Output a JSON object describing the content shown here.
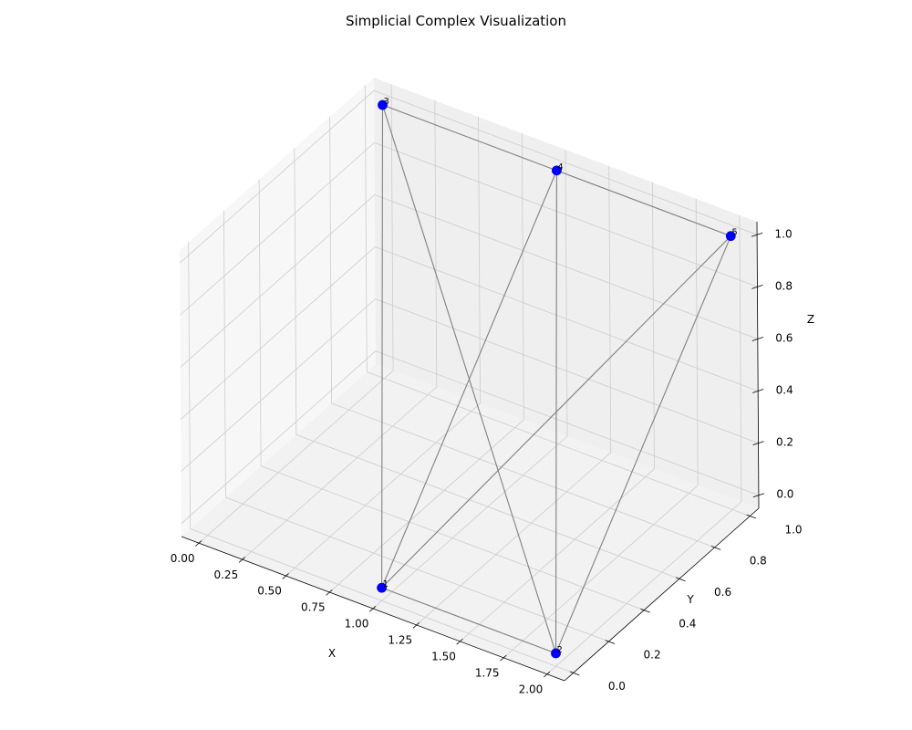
{
  "chart_data": {
    "type": "scatter",
    "title": "Simplicial Complex Visualization",
    "xlabel": "X",
    "ylabel": "Y",
    "zlabel": "Z",
    "grid": true,
    "xlim": [
      -0.1,
      2.1
    ],
    "ylim": [
      -0.05,
      1.05
    ],
    "zlim": [
      -0.05,
      1.05
    ],
    "x_ticks": [
      "0.00",
      "0.25",
      "0.50",
      "0.75",
      "1.00",
      "1.25",
      "1.50",
      "1.75",
      "2.00"
    ],
    "y_ticks": [
      "0.0",
      "0.2",
      "0.4",
      "0.6",
      "0.8",
      "1.0"
    ],
    "z_ticks": [
      "0.0",
      "0.2",
      "0.4",
      "0.6",
      "0.8",
      "1.0"
    ],
    "point_color": "#0000ff",
    "edge_color": "#808080",
    "points": [
      {
        "label": "1",
        "x": 1,
        "y": 0,
        "z": 0
      },
      {
        "label": "2",
        "x": 2,
        "y": 0,
        "z": 0
      },
      {
        "label": "3",
        "x": 0,
        "y": 1,
        "z": 1
      },
      {
        "label": "4",
        "x": 1,
        "y": 1,
        "z": 1
      },
      {
        "label": "5",
        "x": 2,
        "y": 1,
        "z": 1
      }
    ],
    "edges": [
      [
        "1",
        "2"
      ],
      [
        "3",
        "4"
      ],
      [
        "4",
        "5"
      ],
      [
        "1",
        "3"
      ],
      [
        "1",
        "4"
      ],
      [
        "1",
        "5"
      ],
      [
        "2",
        "3"
      ],
      [
        "2",
        "4"
      ],
      [
        "2",
        "5"
      ]
    ]
  }
}
